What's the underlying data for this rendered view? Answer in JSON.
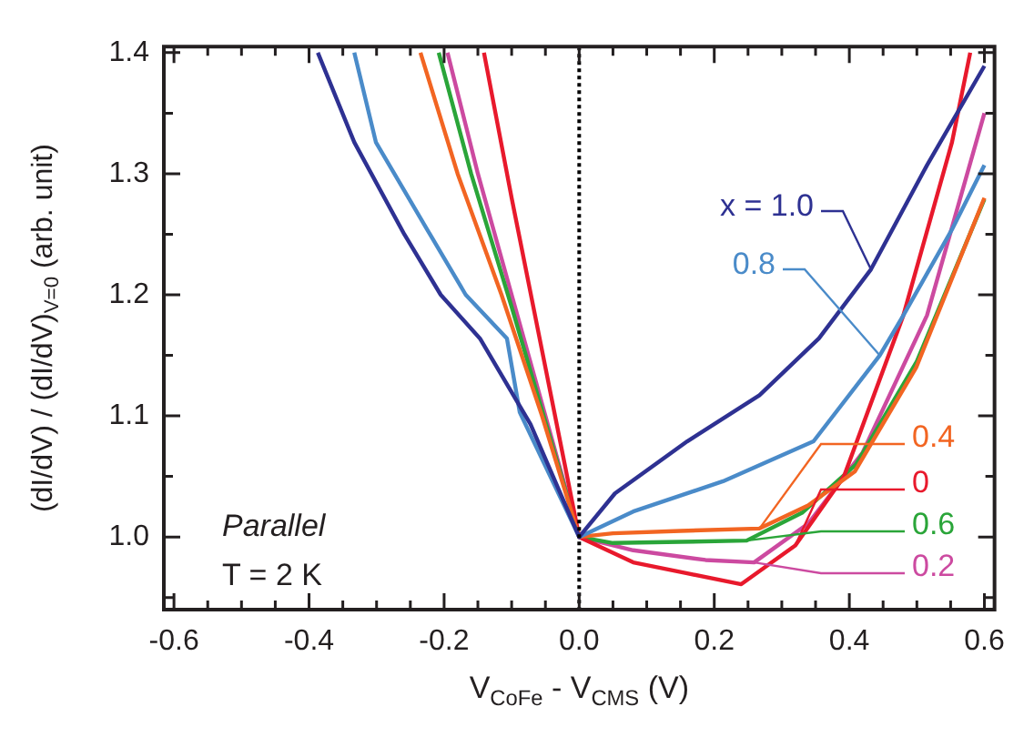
{
  "chart_data": {
    "type": "line",
    "xlabel": "V$_{CoFe}$ - V$_{CMS}$ (V)",
    "ylabel": "(dI/dV) / (dI/dV)$_{V=0}$ (arb. unit)",
    "xlim": [
      -0.615,
      0.615
    ],
    "ylim": [
      0.94,
      1.405
    ],
    "xticks": [
      -0.6,
      {
        "value": -0.55,
        "label": null
      },
      -0.4,
      {
        "value": -0.5,
        "label": null
      },
      {
        "value": -0.45,
        "label": null
      },
      {
        "value": -0.35,
        "label": null
      },
      {
        "value": -0.3,
        "label": null
      },
      {
        "value": -0.25,
        "label": null
      },
      -0.2,
      {
        "value": -0.15,
        "label": null
      },
      {
        "value": -0.1,
        "label": null
      },
      {
        "value": -0.05,
        "label": null
      },
      {
        "value": 0,
        "label": "0.0"
      },
      {
        "value": 0.05,
        "label": null
      },
      {
        "value": 0.1,
        "label": null
      },
      {
        "value": 0.15,
        "label": null
      },
      0.2,
      {
        "value": 0.25,
        "label": null
      },
      {
        "value": 0.3,
        "label": null
      },
      {
        "value": 0.35,
        "label": null
      },
      0.4,
      {
        "value": 0.45,
        "label": null
      },
      {
        "value": 0.5,
        "label": null
      },
      {
        "value": 0.55,
        "label": null
      },
      0.6
    ],
    "yticks": [
      {
        "value": 0.95,
        "label": null
      },
      {
        "value": 1,
        "label": "1.0"
      },
      {
        "value": 1.05,
        "label": null
      },
      1.1,
      {
        "value": 1.15,
        "label": null
      },
      1.2,
      {
        "value": 1.25,
        "label": null
      },
      1.3,
      {
        "value": 1.35,
        "label": null
      },
      1.4
    ],
    "grid": false,
    "legend": false,
    "marker": "none",
    "line_style": "solid",
    "ref_lines": [
      {
        "axis": "x",
        "value": 0,
        "color": "#000000",
        "line_style": "dotted"
      }
    ],
    "annotations": [
      "Parallel",
      "T = 2 K"
    ],
    "series": [
      {
        "name": "x = 1.0",
        "color": "#2e3192",
        "x": [
          -0.387,
          -0.333,
          -0.259,
          -0.205,
          -0.147,
          -0.072,
          0,
          0.053,
          0.16,
          0.267,
          0.355,
          0.432,
          0.515,
          0.6
        ],
        "values": [
          1.4,
          1.326,
          1.25,
          1.2,
          1.164,
          1.093,
          1.0,
          1.036,
          1.079,
          1.117,
          1.164,
          1.221,
          1.307,
          1.389
        ]
      },
      {
        "name": "0.8",
        "color": "#4a8bc9",
        "x": [
          -0.333,
          -0.301,
          -0.221,
          -0.168,
          -0.107,
          -0.088,
          0,
          0.08,
          0.213,
          0.347,
          0.445,
          0.48,
          0.552,
          0.6
        ],
        "values": [
          1.4,
          1.326,
          1.25,
          1.2,
          1.164,
          1.103,
          1.0,
          1.021,
          1.046,
          1.079,
          1.15,
          1.183,
          1.254,
          1.307
        ]
      },
      {
        "name": "0.4",
        "color": "#f26522",
        "x": [
          -0.235,
          -0.18,
          -0.115,
          -0.055,
          0,
          0.05,
          0.15,
          0.267,
          0.339,
          0.408,
          0.499,
          0.6
        ],
        "values": [
          1.4,
          1.3,
          1.2,
          1.1,
          1.0,
          1.003,
          1.005,
          1.007,
          1.026,
          1.054,
          1.14,
          1.28
        ]
      },
      {
        "name": "0",
        "color": "#e8192c",
        "x": [
          -0.141,
          -0.1,
          -0.05,
          0,
          0.08,
          0.16,
          0.24,
          0.32,
          0.392,
          0.48,
          0.552,
          0.579
        ],
        "values": [
          1.4,
          1.28,
          1.14,
          1.0,
          0.979,
          0.97,
          0.961,
          0.993,
          1.05,
          1.183,
          1.326,
          1.4
        ]
      },
      {
        "name": "0.6",
        "color": "#2aa539",
        "x": [
          -0.208,
          -0.16,
          -0.1,
          -0.05,
          0,
          0.05,
          0.15,
          0.248,
          0.33,
          0.41,
          0.5,
          0.6
        ],
        "values": [
          1.4,
          1.3,
          1.19,
          1.095,
          1.0,
          0.995,
          0.996,
          0.997,
          1.02,
          1.06,
          1.145,
          1.279
        ]
      },
      {
        "name": "0.2",
        "color": "#cc4aa0",
        "x": [
          -0.195,
          -0.15,
          -0.1,
          -0.05,
          0,
          0.08,
          0.187,
          0.259,
          0.339,
          0.42,
          0.515,
          0.6
        ],
        "values": [
          1.4,
          1.3,
          1.2,
          1.1,
          1.0,
          0.989,
          0.981,
          0.979,
          1.011,
          1.07,
          1.183,
          1.35
        ]
      }
    ]
  }
}
